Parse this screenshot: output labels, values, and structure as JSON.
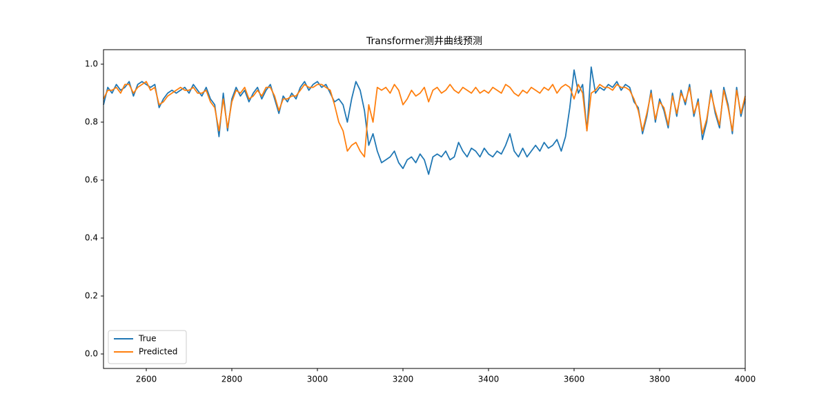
{
  "chart_data": {
    "type": "line",
    "title": "Transformer测井曲线预测",
    "x": [
      2500,
      2510,
      2520,
      2530,
      2540,
      2550,
      2560,
      2570,
      2580,
      2590,
      2600,
      2610,
      2620,
      2630,
      2640,
      2650,
      2660,
      2670,
      2680,
      2690,
      2700,
      2710,
      2720,
      2730,
      2740,
      2750,
      2760,
      2770,
      2780,
      2790,
      2800,
      2810,
      2820,
      2830,
      2840,
      2850,
      2860,
      2870,
      2880,
      2890,
      2900,
      2910,
      2920,
      2930,
      2940,
      2950,
      2960,
      2970,
      2980,
      2990,
      3000,
      3010,
      3020,
      3030,
      3040,
      3050,
      3060,
      3070,
      3080,
      3090,
      3100,
      3110,
      3120,
      3130,
      3140,
      3150,
      3160,
      3170,
      3180,
      3190,
      3200,
      3210,
      3220,
      3230,
      3240,
      3250,
      3260,
      3270,
      3280,
      3290,
      3300,
      3310,
      3320,
      3330,
      3340,
      3350,
      3360,
      3370,
      3380,
      3390,
      3400,
      3410,
      3420,
      3430,
      3440,
      3450,
      3460,
      3470,
      3480,
      3490,
      3500,
      3510,
      3520,
      3530,
      3540,
      3550,
      3560,
      3570,
      3580,
      3590,
      3600,
      3610,
      3620,
      3630,
      3640,
      3650,
      3660,
      3670,
      3680,
      3690,
      3700,
      3710,
      3720,
      3730,
      3740,
      3750,
      3760,
      3770,
      3780,
      3790,
      3800,
      3810,
      3820,
      3830,
      3840,
      3850,
      3860,
      3870,
      3880,
      3890,
      3900,
      3910,
      3920,
      3930,
      3940,
      3950,
      3960,
      3970,
      3980,
      3990,
      4000
    ],
    "series": [
      {
        "name": "True",
        "color": "#1f77b4",
        "values": [
          0.86,
          0.92,
          0.9,
          0.93,
          0.91,
          0.92,
          0.94,
          0.89,
          0.93,
          0.94,
          0.93,
          0.92,
          0.93,
          0.85,
          0.88,
          0.9,
          0.91,
          0.9,
          0.91,
          0.92,
          0.9,
          0.93,
          0.91,
          0.89,
          0.92,
          0.88,
          0.86,
          0.75,
          0.9,
          0.77,
          0.88,
          0.92,
          0.89,
          0.91,
          0.87,
          0.9,
          0.92,
          0.88,
          0.91,
          0.93,
          0.88,
          0.83,
          0.89,
          0.87,
          0.9,
          0.88,
          0.92,
          0.94,
          0.91,
          0.93,
          0.94,
          0.92,
          0.93,
          0.9,
          0.87,
          0.88,
          0.86,
          0.8,
          0.88,
          0.94,
          0.91,
          0.84,
          0.72,
          0.76,
          0.7,
          0.66,
          0.67,
          0.68,
          0.7,
          0.66,
          0.64,
          0.67,
          0.68,
          0.66,
          0.69,
          0.67,
          0.62,
          0.68,
          0.69,
          0.68,
          0.7,
          0.67,
          0.68,
          0.73,
          0.7,
          0.68,
          0.71,
          0.7,
          0.68,
          0.71,
          0.69,
          0.68,
          0.7,
          0.69,
          0.72,
          0.76,
          0.7,
          0.68,
          0.71,
          0.68,
          0.7,
          0.72,
          0.7,
          0.73,
          0.71,
          0.72,
          0.74,
          0.7,
          0.75,
          0.85,
          0.98,
          0.9,
          0.93,
          0.77,
          0.99,
          0.9,
          0.92,
          0.91,
          0.93,
          0.92,
          0.94,
          0.91,
          0.93,
          0.92,
          0.87,
          0.85,
          0.76,
          0.82,
          0.91,
          0.8,
          0.88,
          0.84,
          0.78,
          0.9,
          0.82,
          0.91,
          0.86,
          0.93,
          0.82,
          0.88,
          0.74,
          0.8,
          0.91,
          0.83,
          0.78,
          0.92,
          0.86,
          0.76,
          0.92,
          0.82,
          0.88
        ]
      },
      {
        "name": "Predicted",
        "color": "#ff7f0e",
        "values": [
          0.88,
          0.91,
          0.91,
          0.92,
          0.9,
          0.93,
          0.93,
          0.9,
          0.92,
          0.93,
          0.94,
          0.91,
          0.92,
          0.86,
          0.87,
          0.89,
          0.9,
          0.91,
          0.92,
          0.91,
          0.91,
          0.92,
          0.9,
          0.9,
          0.91,
          0.87,
          0.85,
          0.77,
          0.88,
          0.78,
          0.87,
          0.91,
          0.9,
          0.92,
          0.88,
          0.89,
          0.91,
          0.89,
          0.92,
          0.92,
          0.89,
          0.84,
          0.88,
          0.88,
          0.89,
          0.89,
          0.91,
          0.93,
          0.92,
          0.92,
          0.93,
          0.93,
          0.92,
          0.91,
          0.86,
          0.8,
          0.77,
          0.7,
          0.72,
          0.73,
          0.7,
          0.68,
          0.86,
          0.8,
          0.92,
          0.91,
          0.92,
          0.9,
          0.93,
          0.91,
          0.86,
          0.88,
          0.91,
          0.89,
          0.9,
          0.92,
          0.87,
          0.91,
          0.92,
          0.9,
          0.91,
          0.93,
          0.91,
          0.9,
          0.92,
          0.91,
          0.9,
          0.92,
          0.9,
          0.91,
          0.9,
          0.92,
          0.91,
          0.9,
          0.93,
          0.92,
          0.9,
          0.89,
          0.91,
          0.9,
          0.92,
          0.91,
          0.9,
          0.92,
          0.91,
          0.93,
          0.9,
          0.92,
          0.93,
          0.92,
          0.88,
          0.93,
          0.9,
          0.77,
          0.9,
          0.91,
          0.93,
          0.92,
          0.92,
          0.91,
          0.93,
          0.92,
          0.92,
          0.91,
          0.88,
          0.84,
          0.77,
          0.83,
          0.9,
          0.81,
          0.87,
          0.85,
          0.79,
          0.89,
          0.83,
          0.9,
          0.87,
          0.92,
          0.83,
          0.87,
          0.76,
          0.81,
          0.9,
          0.84,
          0.79,
          0.91,
          0.85,
          0.77,
          0.91,
          0.83,
          0.89
        ]
      }
    ],
    "xlim": [
      2500,
      4000
    ],
    "xticks": [
      2600,
      2800,
      3000,
      3200,
      3400,
      3600,
      3800,
      4000
    ],
    "ylim": [
      -0.05,
      1.05
    ],
    "yticks": [
      {
        "value": 0,
        "label": "0.0"
      },
      0.2,
      0.4,
      0.6,
      0.8,
      {
        "value": 1,
        "label": "1.0"
      }
    ],
    "legend": "lower left"
  }
}
